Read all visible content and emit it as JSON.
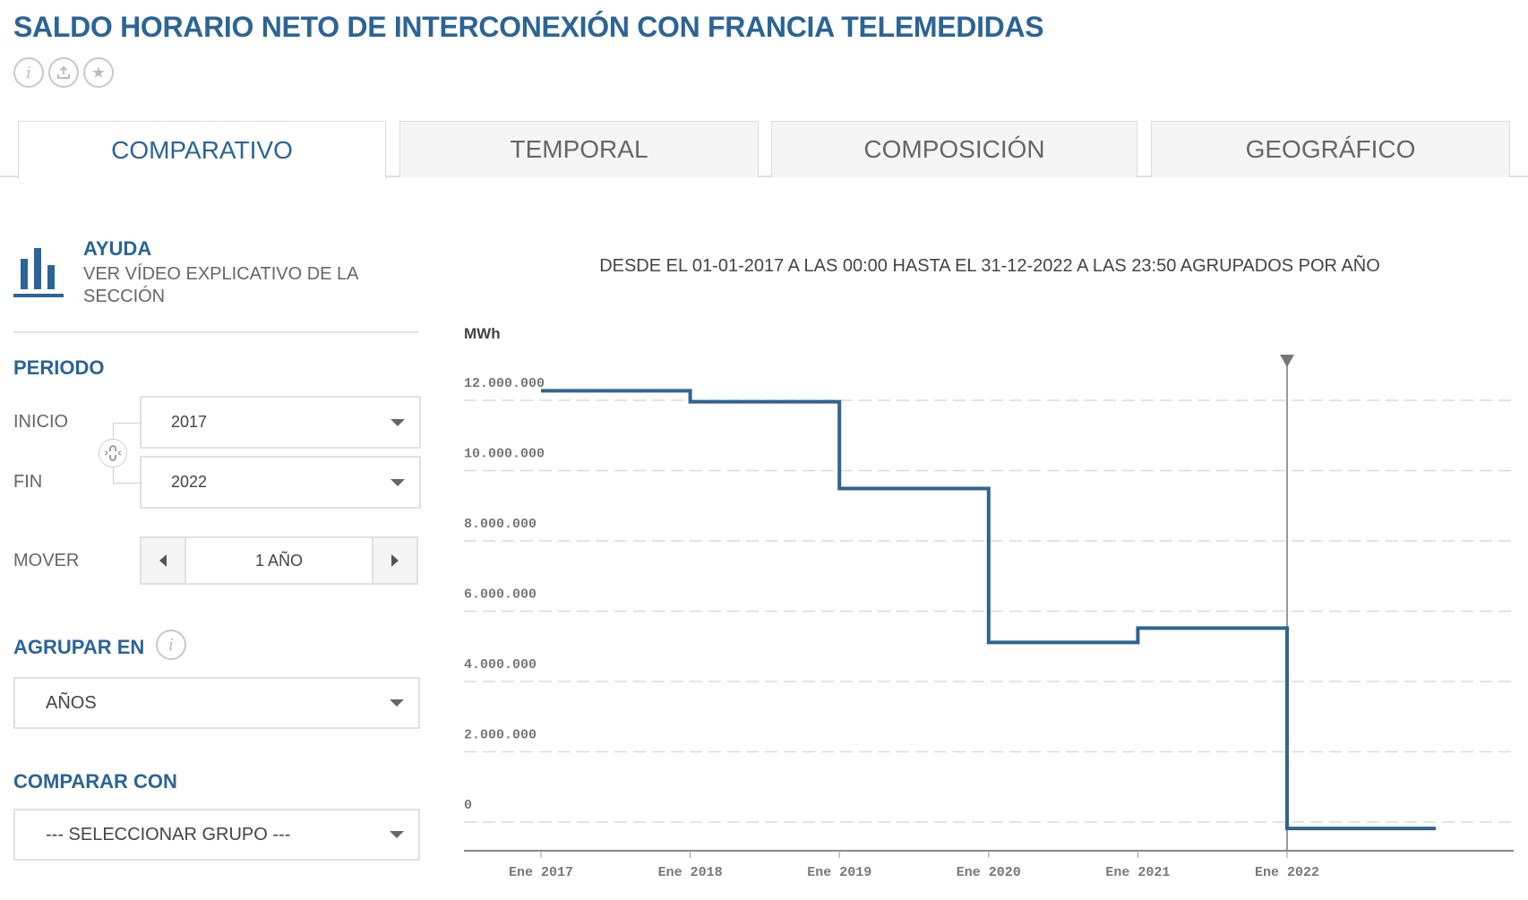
{
  "header": {
    "title": "SALDO HORARIO NETO DE INTERCONEXIÓN CON FRANCIA TELEMEDIDAS",
    "icons": [
      "info-icon",
      "download-icon",
      "star-icon"
    ]
  },
  "tabs": [
    {
      "label": "COMPARATIVO",
      "active": true
    },
    {
      "label": "TEMPORAL",
      "active": false
    },
    {
      "label": "COMPOSICIÓN",
      "active": false
    },
    {
      "label": "GEOGRÁFICO",
      "active": false
    }
  ],
  "sidebar": {
    "help": {
      "title": "AYUDA",
      "subtitle": "VER VÍDEO EXPLICATIVO DE LA SECCIÓN"
    },
    "period": {
      "label": "PERIODO",
      "start_label": "INICIO",
      "start_value": "2017",
      "end_label": "FIN",
      "end_value": "2022",
      "move_label": "MOVER",
      "move_value": "1 AÑO"
    },
    "group": {
      "label": "AGRUPAR EN",
      "value": "AÑOS"
    },
    "compare": {
      "label": "COMPARAR CON",
      "value": "--- SELECCIONAR GRUPO ---"
    }
  },
  "chart": {
    "subtitle": "DESDE EL 01-01-2017 A LAS 00:00 HASTA EL 31-12-2022 A LAS 23:50 AGRUPADOS POR AÑO",
    "unit": "MWh",
    "line_color": "#2f6491"
  },
  "chart_data": {
    "type": "line",
    "step": true,
    "title": "DESDE EL 01-01-2017 A LAS 00:00 HASTA EL 31-12-2022 A LAS 23:50 AGRUPADOS POR AÑO",
    "xlabel": "",
    "ylabel": "MWh",
    "categories": [
      "Ene 2017",
      "Ene 2018",
      "Ene 2019",
      "Ene 2020",
      "Ene 2021",
      "Ene 2022"
    ],
    "series": [
      {
        "name": "Saldo horario neto de interconexión con Francia telemedidas",
        "values": [
          12270000,
          11960000,
          9490000,
          5110000,
          5520000,
          -180000
        ]
      }
    ],
    "yticks": [
      "0",
      "2.000.000",
      "4.000.000",
      "6.000.000",
      "8.000.000",
      "10.000.000",
      "12.000.000"
    ],
    "ylim": [
      -700000,
      13000000
    ],
    "grid": true,
    "marker": "Ene 2022"
  }
}
